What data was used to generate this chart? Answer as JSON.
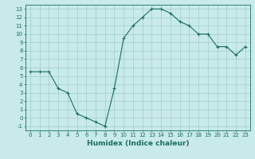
{
  "x": [
    0,
    1,
    2,
    3,
    4,
    5,
    6,
    7,
    8,
    9,
    10,
    11,
    12,
    13,
    14,
    15,
    16,
    17,
    18,
    19,
    20,
    21,
    22,
    23
  ],
  "y": [
    5.5,
    5.5,
    5.5,
    3.5,
    3.0,
    0.5,
    0.0,
    -0.5,
    -1.0,
    3.5,
    9.5,
    11.0,
    12.0,
    13.0,
    13.0,
    12.5,
    11.5,
    11.0,
    10.0,
    10.0,
    8.5,
    8.5,
    7.5,
    8.5
  ],
  "xlim": [
    -0.5,
    23.5
  ],
  "ylim": [
    -1.5,
    13.5
  ],
  "xticks": [
    0,
    1,
    2,
    3,
    4,
    5,
    6,
    7,
    8,
    9,
    10,
    11,
    12,
    13,
    14,
    15,
    16,
    17,
    18,
    19,
    20,
    21,
    22,
    23
  ],
  "yticks": [
    -1,
    0,
    1,
    2,
    3,
    4,
    5,
    6,
    7,
    8,
    9,
    10,
    11,
    12,
    13
  ],
  "xlabel": "Humidex (Indice chaleur)",
  "line_color": "#1a6e60",
  "marker_color": "#1a6e60",
  "bg_color": "#c8eae8",
  "grid_color": "#9ecece",
  "tick_label_fontsize": 5.0,
  "xlabel_fontsize": 6.5
}
